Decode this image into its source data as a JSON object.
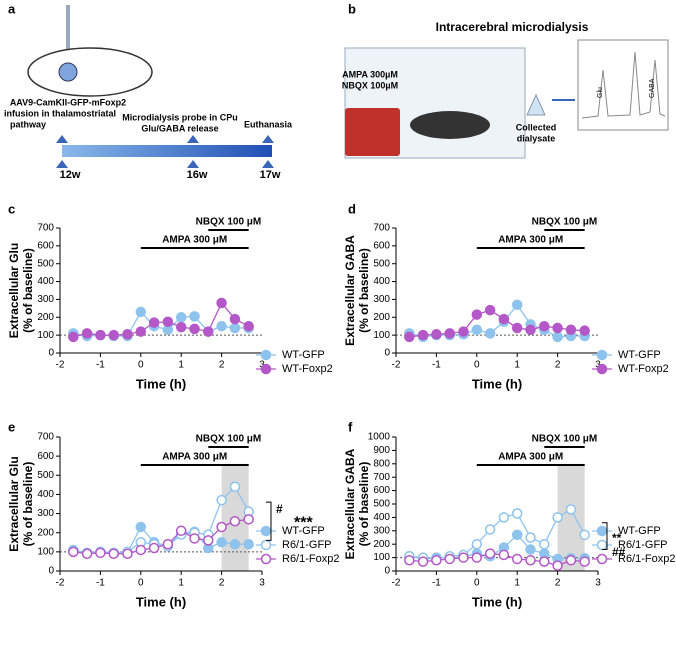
{
  "panel_labels": [
    "a",
    "b",
    "c",
    "d",
    "e",
    "f"
  ],
  "panel_a": {
    "infusion": [
      "AAV9-CamKII-GFP-mFoxp2",
      "infusion in thalamostriatal",
      "pathway"
    ],
    "probe": [
      "Microdialysis probe in CPu",
      "Glu/GABA release"
    ],
    "euthanasia": "Euthanasia",
    "weeks": [
      "12w",
      "16w",
      "17w"
    ]
  },
  "panel_b": {
    "title": "Intracerebral microdialysis",
    "drugs": [
      "AMPA 300µM",
      "NBQX 100µM"
    ],
    "collected": [
      "Collected",
      "dialysate"
    ],
    "peaks": [
      "Glu",
      "GABA"
    ]
  },
  "chart_data": [
    {
      "type": "line",
      "y_label": [
        "Extracellular Glu",
        "(% of baseline)"
      ],
      "x_label": "Time (h)",
      "x": [
        -1.67,
        -1.33,
        -1,
        -0.67,
        -0.33,
        0,
        0.33,
        0.67,
        1,
        1.33,
        1.67,
        2,
        2.33,
        2.67
      ],
      "xlim": [
        -2,
        3
      ],
      "xticks": [
        -2,
        -1,
        0,
        1,
        2,
        3
      ],
      "ylim": [
        0,
        700
      ],
      "yticks": [
        0,
        100,
        200,
        300,
        400,
        500,
        600,
        700
      ],
      "reference_line": 100,
      "bars": [
        {
          "label": "AMPA 300 μM",
          "range": [
            0,
            2.67
          ]
        },
        {
          "label": "NBQX 100 μM",
          "range": [
            1.67,
            2.67
          ]
        }
      ],
      "series": [
        {
          "name": "WT-GFP",
          "color": "#8ec3ee",
          "marker": "filled",
          "values": [
            110,
            95,
            100,
            95,
            95,
            230,
            150,
            130,
            200,
            205,
            120,
            150,
            140,
            140
          ]
        },
        {
          "name": "WT-Foxp2",
          "color": "#b457c7",
          "marker": "filled",
          "values": [
            90,
            110,
            100,
            100,
            105,
            120,
            170,
            175,
            145,
            135,
            120,
            280,
            190,
            150
          ]
        }
      ]
    },
    {
      "type": "line",
      "y_label": [
        "Extracellular GABA",
        "(% of baseline)"
      ],
      "x_label": "Time (h)",
      "x": [
        -1.67,
        -1.33,
        -1,
        -0.67,
        -0.33,
        0,
        0.33,
        0.67,
        1,
        1.33,
        1.67,
        2,
        2.33,
        2.67
      ],
      "xlim": [
        -2,
        3
      ],
      "xticks": [
        -2,
        -1,
        0,
        1,
        2,
        3
      ],
      "ylim": [
        0,
        700
      ],
      "yticks": [
        0,
        100,
        200,
        300,
        400,
        500,
        600,
        700
      ],
      "reference_line": 100,
      "bars": [
        {
          "label": "AMPA 300 μM",
          "range": [
            0,
            2.67
          ]
        },
        {
          "label": "NBQX 100 μM",
          "range": [
            1.67,
            2.67
          ]
        }
      ],
      "series": [
        {
          "name": "WT-GFP",
          "color": "#8ec3ee",
          "marker": "filled",
          "values": [
            110,
            90,
            100,
            100,
            105,
            130,
            110,
            175,
            270,
            160,
            130,
            90,
            95,
            95
          ]
        },
        {
          "name": "WT-Foxp2",
          "color": "#b457c7",
          "marker": "filled",
          "values": [
            90,
            100,
            105,
            110,
            120,
            215,
            240,
            190,
            140,
            130,
            150,
            140,
            130,
            125
          ]
        }
      ]
    },
    {
      "type": "line",
      "y_label": [
        "Extracellular Glu",
        "(% of baseline)"
      ],
      "x_label": "Time (h)",
      "x": [
        -1.67,
        -1.33,
        -1,
        -0.67,
        -0.33,
        0,
        0.33,
        0.67,
        1,
        1.33,
        1.67,
        2,
        2.33,
        2.67
      ],
      "xlim": [
        -2,
        3
      ],
      "xticks": [
        -2,
        -1,
        0,
        1,
        2,
        3
      ],
      "ylim": [
        0,
        700
      ],
      "yticks": [
        0,
        100,
        200,
        300,
        400,
        500,
        600,
        700
      ],
      "reference_line": 100,
      "shade": [
        2,
        2.67
      ],
      "bars": [
        {
          "label": "AMPA 300 μM",
          "range": [
            0,
            2.67
          ]
        },
        {
          "label": "NBQX 100 μM",
          "range": [
            1.67,
            2.67
          ]
        }
      ],
      "significance": [
        "#",
        "***"
      ],
      "series": [
        {
          "name": "WT-GFP",
          "color": "#8ec3ee",
          "marker": "filled",
          "values": [
            110,
            95,
            100,
            95,
            95,
            230,
            150,
            130,
            200,
            205,
            120,
            150,
            140,
            140
          ]
        },
        {
          "name": "R6/1-GFP",
          "color": "#8ec3ee",
          "marker": "open",
          "values": [
            105,
            95,
            100,
            95,
            100,
            150,
            140,
            130,
            190,
            200,
            190,
            370,
            440,
            310
          ]
        },
        {
          "name": "R6/1-Foxp2",
          "color": "#b457c7",
          "marker": "open",
          "values": [
            100,
            90,
            95,
            90,
            90,
            110,
            120,
            140,
            210,
            170,
            160,
            230,
            260,
            270
          ]
        }
      ]
    },
    {
      "type": "line",
      "y_label": [
        "Extracellular GABA",
        "(% of baseline)"
      ],
      "x_label": "Time (h)",
      "x": [
        -1.67,
        -1.33,
        -1,
        -0.67,
        -0.33,
        0,
        0.33,
        0.67,
        1,
        1.33,
        1.67,
        2,
        2.33,
        2.67
      ],
      "xlim": [
        -2,
        3
      ],
      "xticks": [
        -2,
        -1,
        0,
        1,
        2,
        3
      ],
      "ylim": [
        0,
        1000
      ],
      "yticks": [
        0,
        100,
        200,
        300,
        400,
        500,
        600,
        700,
        800,
        900,
        1000
      ],
      "reference_line": 100,
      "shade": [
        2,
        2.67
      ],
      "bars": [
        {
          "label": "AMPA 300 μM",
          "range": [
            0,
            2.67
          ]
        },
        {
          "label": "NBQX 100 μM",
          "range": [
            1.67,
            2.67
          ]
        }
      ],
      "significance": [
        "**",
        "##"
      ],
      "series": [
        {
          "name": "WT-GFP",
          "color": "#8ec3ee",
          "marker": "filled",
          "values": [
            110,
            90,
            100,
            100,
            105,
            130,
            110,
            175,
            270,
            160,
            130,
            90,
            95,
            95
          ]
        },
        {
          "name": "R6/1-GFP",
          "color": "#8ec3ee",
          "marker": "open",
          "values": [
            110,
            100,
            90,
            110,
            120,
            200,
            310,
            400,
            430,
            250,
            200,
            400,
            460,
            270
          ]
        },
        {
          "name": "R6/1-Foxp2",
          "color": "#b457c7",
          "marker": "open",
          "values": [
            80,
            70,
            80,
            90,
            100,
            100,
            130,
            120,
            90,
            80,
            70,
            40,
            80,
            70
          ]
        }
      ]
    }
  ]
}
